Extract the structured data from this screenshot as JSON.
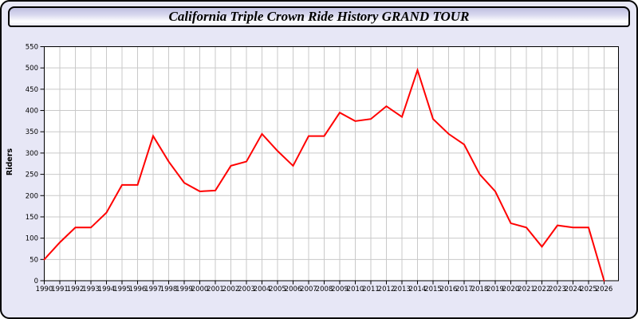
{
  "header": {
    "title": "California Triple Crown Ride History GRAND TOUR"
  },
  "colors": {
    "page_bg": "#e7e7f6",
    "plot_bg": "#ffffff",
    "grid": "#c9c9c9",
    "axis": "#000000",
    "line": "#ff0000",
    "text": "#000000"
  },
  "chart_data": {
    "type": "line",
    "title": "California Triple Crown Ride History GRAND TOUR",
    "xlabel": "",
    "ylabel": "Riders",
    "x": [
      1990,
      1991,
      1992,
      1993,
      1994,
      1995,
      1996,
      1997,
      1998,
      1999,
      2000,
      2001,
      2002,
      2003,
      2004,
      2005,
      2006,
      2007,
      2008,
      2009,
      2010,
      2011,
      2012,
      2013,
      2014,
      2015,
      2016,
      2017,
      2018,
      2019,
      2020,
      2021,
      2022,
      2023,
      2024,
      2025,
      2026
    ],
    "series": [
      {
        "name": "Riders",
        "color": "#ff0000",
        "values": [
          50,
          90,
          125,
          125,
          160,
          225,
          225,
          340,
          280,
          230,
          210,
          212,
          270,
          280,
          345,
          305,
          270,
          340,
          340,
          395,
          375,
          380,
          410,
          385,
          495,
          380,
          345,
          320,
          250,
          210,
          135,
          125,
          80,
          130,
          125,
          125,
          0
        ]
      }
    ],
    "ylim": [
      0,
      550
    ],
    "ytick_step": 50,
    "grid": true,
    "legend": "none"
  }
}
